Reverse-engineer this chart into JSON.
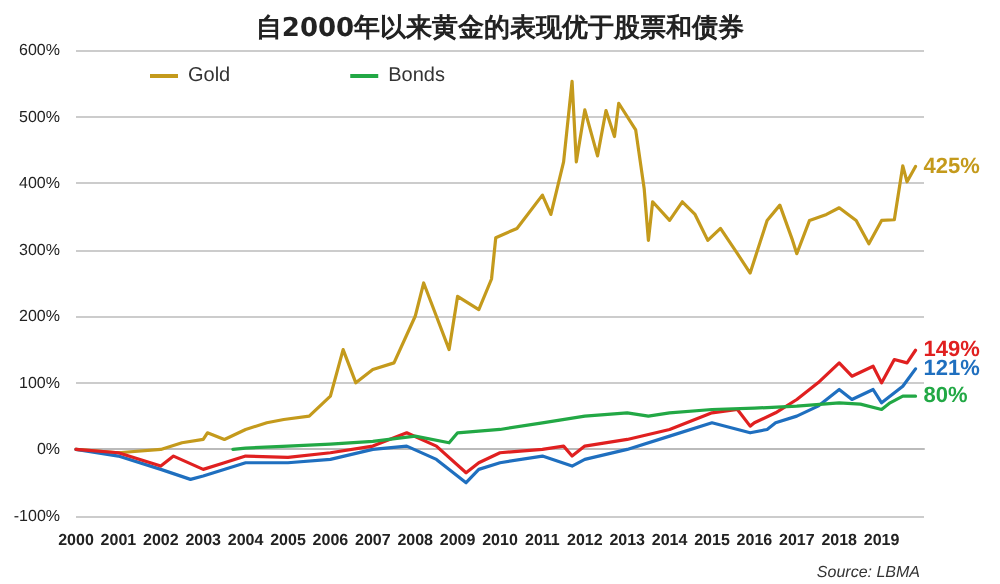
{
  "chart_data": {
    "type": "line",
    "title": "自2000年以来黄金的表现优于股票和债券",
    "xlim": [
      2000,
      2020
    ],
    "xticks": [
      2000,
      2001,
      2002,
      2003,
      2004,
      2005,
      2006,
      2007,
      2008,
      2009,
      2010,
      2011,
      2012,
      2013,
      2014,
      2015,
      2016,
      2017,
      2018,
      2019
    ],
    "ylim": [
      -100,
      600
    ],
    "yticks": [
      {
        "value": -100,
        "label": "-100%"
      },
      {
        "value": 0,
        "label": "0%"
      },
      {
        "value": 100,
        "label": "100%"
      },
      {
        "value": 200,
        "label": "200%"
      },
      {
        "value": 300,
        "label": "300%"
      },
      {
        "value": 400,
        "label": "400%"
      },
      {
        "value": 500,
        "label": "500%"
      },
      {
        "value": 600,
        "label": "600%"
      }
    ],
    "grid": "y",
    "legend": "top left",
    "marker": "none",
    "line_style": "solid",
    "series": [
      {
        "name": "Gold",
        "color": "#c49a1c",
        "x": [
          2000,
          2001,
          2002,
          2002.5,
          2003,
          2003.1,
          2003.5,
          2004,
          2004.5,
          2004.9,
          2005.5,
          2006,
          2006.3,
          2006.6,
          2007,
          2007.5,
          2008,
          2008.2,
          2008.5,
          2008.8,
          2009,
          2009.5,
          2009.8,
          2009.9,
          2010.4,
          2011,
          2011.2,
          2011.5,
          2011.7,
          2011.8,
          2012,
          2012.3,
          2012.5,
          2012.7,
          2012.8,
          2013.2,
          2013.4,
          2013.5,
          2013.6,
          2014,
          2014.3,
          2014.6,
          2014.9,
          2015.2,
          2015.6,
          2015.9,
          2016.3,
          2016.6,
          2016.9,
          2017,
          2017.3,
          2017.7,
          2018,
          2018.4,
          2018.7,
          2019,
          2019.3,
          2019.5,
          2019.6,
          2019.8
        ],
        "values": [
          0,
          -5,
          0,
          10,
          15,
          25,
          15,
          30,
          40,
          45,
          50,
          80,
          150,
          100,
          120,
          130,
          200,
          250,
          200,
          150,
          230,
          210,
          256,
          318,
          332,
          382,
          353,
          432,
          553,
          432,
          510,
          441,
          509,
          470,
          520,
          480,
          392,
          314,
          372,
          344,
          372,
          353,
          314,
          332,
          294,
          265,
          344,
          367,
          314,
          294,
          344,
          353,
          363,
          344,
          309,
          344,
          345,
          426,
          402,
          425
        ],
        "value_labels": [
          null,
          null,
          null,
          null,
          null,
          null,
          null,
          null,
          null,
          null,
          null,
          null,
          null,
          null,
          null,
          null,
          null,
          null,
          null,
          null,
          null,
          null,
          null,
          null,
          null,
          null,
          null,
          null,
          null,
          null,
          null,
          null,
          null,
          null,
          null,
          null,
          null,
          null,
          null,
          null,
          null,
          null,
          null,
          null,
          null,
          null,
          null,
          null,
          null,
          null,
          null,
          null,
          null,
          null,
          null,
          null,
          null,
          null,
          null,
          "425%"
        ]
      },
      {
        "color": "#1f6fbf",
        "x": [
          2000,
          2001,
          2002,
          2002.7,
          2003,
          2004,
          2005,
          2006,
          2007,
          2007.8,
          2008.5,
          2009.2,
          2009.5,
          2010,
          2011,
          2011.7,
          2012,
          2013,
          2014,
          2015,
          2015.9,
          2016.3,
          2016.5,
          2017,
          2017.5,
          2018,
          2018.3,
          2018.8,
          2019,
          2019.5,
          2019.8
        ],
        "values": [
          0,
          -10,
          -30,
          -45,
          -40,
          -20,
          -20,
          -15,
          0,
          5,
          -15,
          -50,
          -30,
          -20,
          -10,
          -25,
          -15,
          0,
          20,
          40,
          25,
          30,
          40,
          50,
          65,
          90,
          75,
          90,
          70,
          95,
          121
        ],
        "value_labels": [
          null,
          null,
          null,
          null,
          null,
          null,
          null,
          null,
          null,
          null,
          null,
          null,
          null,
          null,
          null,
          null,
          null,
          null,
          null,
          null,
          null,
          null,
          null,
          null,
          null,
          null,
          null,
          null,
          null,
          null,
          "121%"
        ]
      },
      {
        "color": "#e02020",
        "x": [
          2000,
          2001,
          2002,
          2002.3,
          2003,
          2003.5,
          2004,
          2005,
          2006,
          2007,
          2007.8,
          2008.5,
          2009.2,
          2009.5,
          2010,
          2011,
          2011.5,
          2011.7,
          2012,
          2013,
          2014,
          2015,
          2015.6,
          2015.9,
          2016,
          2016.5,
          2017,
          2017.5,
          2018,
          2018.3,
          2018.8,
          2019,
          2019.3,
          2019.6,
          2019.8
        ],
        "values": [
          0,
          -5,
          -25,
          -10,
          -30,
          -20,
          -10,
          -12,
          -5,
          5,
          25,
          5,
          -35,
          -20,
          -5,
          0,
          5,
          -10,
          5,
          15,
          30,
          55,
          60,
          35,
          40,
          55,
          75,
          100,
          130,
          110,
          125,
          100,
          135,
          130,
          149
        ],
        "value_labels": [
          null,
          null,
          null,
          null,
          null,
          null,
          null,
          null,
          null,
          null,
          null,
          null,
          null,
          null,
          null,
          null,
          null,
          null,
          null,
          null,
          null,
          null,
          null,
          null,
          null,
          null,
          null,
          null,
          null,
          null,
          null,
          null,
          null,
          null,
          "149%"
        ]
      },
      {
        "name": "Bonds",
        "color": "#22a845",
        "x": [
          2003.7,
          2004,
          2005,
          2006,
          2007,
          2008,
          2008.8,
          2009,
          2010,
          2011,
          2012,
          2013,
          2013.5,
          2014,
          2015,
          2016,
          2017,
          2018,
          2018.5,
          2019,
          2019.2,
          2019.5,
          2019.8
        ],
        "values": [
          0,
          2,
          5,
          8,
          12,
          20,
          10,
          25,
          30,
          40,
          50,
          55,
          50,
          55,
          60,
          62,
          65,
          70,
          68,
          60,
          70,
          80,
          80
        ],
        "value_labels": [
          null,
          null,
          null,
          null,
          null,
          null,
          null,
          null,
          null,
          null,
          null,
          null,
          null,
          null,
          null,
          null,
          null,
          null,
          null,
          null,
          null,
          null,
          "80%"
        ]
      }
    ],
    "annotations": [
      "Source: LBMA"
    ]
  }
}
